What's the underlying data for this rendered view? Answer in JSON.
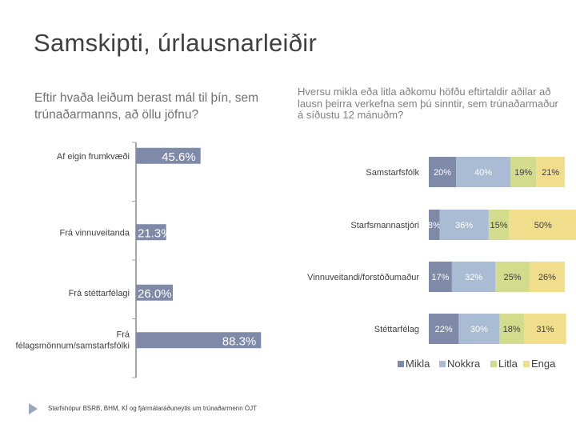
{
  "slide_title": "Samskipti, úrlausnarleiðir",
  "question_left": "Eftir hvaða leiðum berast mál til þín, sem trúnaðarmanns, að öllu jöfnu?",
  "question_right": "Hversu mikla eða litla aðkomu höfðu eftirtaldir aðilar að lausn þeirra verkefna sem þú sinntir, sem trúnaðarmaður á síðustu 12 mánuðm?",
  "footer": "Starfshópur BSRB, BHM, KÍ og fjármálaráðuneytis um trúnaðarmenn ÓJT",
  "colors": {
    "mikla": "#7f89a8",
    "nokkra": "#a9bcd4",
    "litla": "#d2dc8c",
    "enga": "#f1de8c",
    "axis": "#a6a6a6"
  },
  "chart_data": [
    {
      "type": "bar",
      "orientation": "horizontal",
      "title": "Eftir hvaða leiðum berast mál til þín, sem trúnaðarmanns, að öllu jöfnu?",
      "categories": [
        "Af eigin frumkvæði",
        "Frá vinnuveitanda",
        "Frá stéttarfélagi",
        "Frá félagsmönnum/samstarfsfólki"
      ],
      "values": [
        45.6,
        21.3,
        26.0,
        88.3
      ],
      "labels": [
        "45.6%",
        "21.3%",
        "26.0%",
        "88.3%"
      ],
      "unit": "%"
    },
    {
      "type": "bar",
      "orientation": "horizontal",
      "stacked": true,
      "title": "Hversu mikla eða litla aðkomu höfðu eftirtaldir aðilar að lausn þeirra verkefna sem þú sinntir, sem trúnaðarmaður á síðustu 12 mánuðm?",
      "categories": [
        "Samstarfsfólk",
        "Starfsmannastjóri",
        "Vinnuveitandi/forstöðumaður",
        "Stéttarfélag"
      ],
      "series": [
        {
          "name": "Mikla",
          "values": [
            20,
            8,
            17,
            22
          ],
          "labels": [
            "20%",
            "8%",
            "17%",
            "22%"
          ]
        },
        {
          "name": "Nokkra",
          "values": [
            40,
            36,
            32,
            30
          ],
          "labels": [
            "40%",
            "36%",
            "32%",
            "30%"
          ]
        },
        {
          "name": "Litla",
          "values": [
            19,
            15,
            25,
            18
          ],
          "labels": [
            "19%",
            "15%",
            "25%",
            "18%"
          ]
        },
        {
          "name": "Enga",
          "values": [
            21,
            50,
            26,
            31
          ],
          "labels": [
            "21%",
            "50%",
            "26%",
            "31%"
          ]
        }
      ],
      "legend": [
        "Mikla",
        "Nokkra",
        "Litla",
        "Enga"
      ],
      "legend_position": "bottom",
      "unit": "%"
    }
  ]
}
